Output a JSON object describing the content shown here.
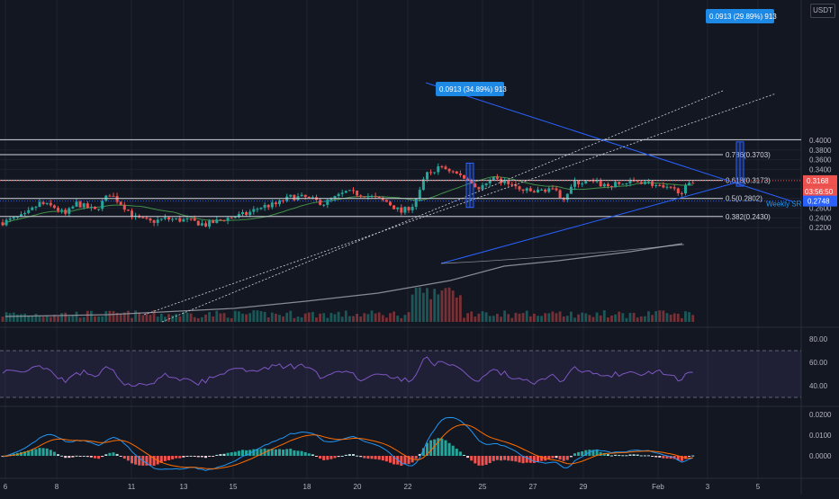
{
  "currency": "USDT",
  "colors": {
    "up": "#26a69a",
    "down": "#ef5350",
    "bg": "#131722",
    "grid": "#1f2330",
    "blue": "#2962ff",
    "rsi": "#7e57c2",
    "macd": "#2196f3",
    "signal": "#ff6d00",
    "ema_short": "#4caf50",
    "ema_long": "#9598a1"
  },
  "chart_data": {
    "type": "candlestick",
    "price_axis": {
      "ticks": [
        "0.4000",
        "0.3800",
        "0.3600",
        "0.3400",
        "0.3200",
        "0.3000",
        "0.2800",
        "0.2600",
        "0.2400",
        "0.2200"
      ],
      "ylim": [
        0.215,
        0.412
      ]
    },
    "x_axis": {
      "ticks": [
        "6",
        "8",
        "11",
        "13",
        "15",
        "18",
        "20",
        "22",
        "25",
        "27",
        "29",
        "Feb",
        "3",
        "5"
      ]
    },
    "fib_levels": [
      {
        "label": "0.786(0.3703)",
        "value": 0.3703
      },
      {
        "label": "0.618(0.3173)",
        "value": 0.3173
      },
      {
        "label": "0.5(0.2802)",
        "value": 0.2802
      },
      {
        "label": "0.382(0.2430)",
        "value": 0.243
      }
    ],
    "top_level": 0.4012,
    "weekly_sr": {
      "label": "Weekly SR",
      "value": 0.2748,
      "badge": "0.2748"
    },
    "last_price": {
      "label": "0.3168",
      "countdown": "03:56:50",
      "value": 0.3168
    },
    "measures": [
      {
        "label": "0.0913 (34.89%) 913",
        "from": 0.2617,
        "to": 0.3529
      },
      {
        "label": "0.0913 (29.89%) 913",
        "from": 0.3054,
        "to": 0.3967
      }
    ],
    "rsi": {
      "ticks": [
        "80.00",
        "60.00",
        "40.00"
      ],
      "bands": [
        70,
        30
      ]
    },
    "macd": {
      "ticks": [
        "0.0200",
        "0.0100",
        "0.0000"
      ]
    }
  }
}
